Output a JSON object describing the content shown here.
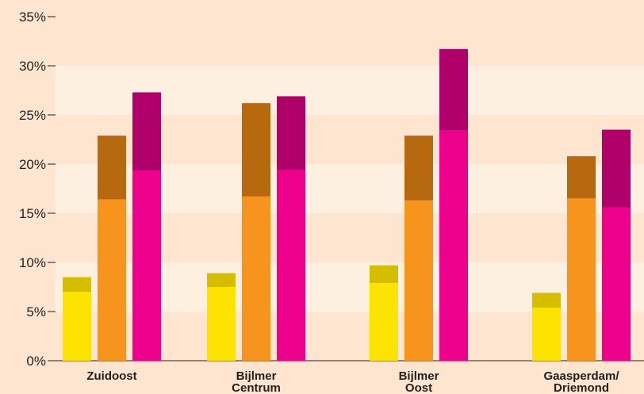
{
  "chart_data": {
    "type": "bar",
    "stacked": true,
    "title": "",
    "xlabel": "",
    "ylabel": "",
    "ylim": [
      0,
      35
    ],
    "y_ticks": [
      "0%",
      "5%",
      "10%",
      "15%",
      "20%",
      "25%",
      "30%",
      "35%"
    ],
    "grid": "alternating horizontal bands",
    "categories": [
      [
        "Zuidoost"
      ],
      [
        "Bijlmer",
        "Centrum"
      ],
      [
        "Bijlmer",
        "Oost"
      ],
      [
        "Gaasperdam/",
        "Driemond"
      ]
    ],
    "groups": [
      {
        "bars": [
          {
            "lower": 7.0,
            "total": 8.5
          },
          {
            "lower": 16.4,
            "total": 22.9
          },
          {
            "lower": 19.3,
            "total": 27.3
          }
        ]
      },
      {
        "bars": [
          {
            "lower": 7.5,
            "total": 8.9
          },
          {
            "lower": 16.7,
            "total": 26.2
          },
          {
            "lower": 19.4,
            "total": 26.9
          }
        ]
      },
      {
        "bars": [
          {
            "lower": 7.9,
            "total": 9.7
          },
          {
            "lower": 16.3,
            "total": 22.9
          },
          {
            "lower": 23.4,
            "total": 31.7
          }
        ]
      },
      {
        "bars": [
          {
            "lower": 5.4,
            "total": 6.9
          },
          {
            "lower": 16.5,
            "total": 20.8
          },
          {
            "lower": 15.6,
            "total": 23.5
          }
        ]
      }
    ],
    "colors": {
      "background": "#fde5cf",
      "band": "#fdf0e1",
      "bar_colors": [
        {
          "lower": "#fde400",
          "upper": "#d5be00"
        },
        {
          "lower": "#f7941e",
          "upper": "#b7690f"
        },
        {
          "lower": "#ec008c",
          "upper": "#b0006a"
        }
      ]
    }
  }
}
